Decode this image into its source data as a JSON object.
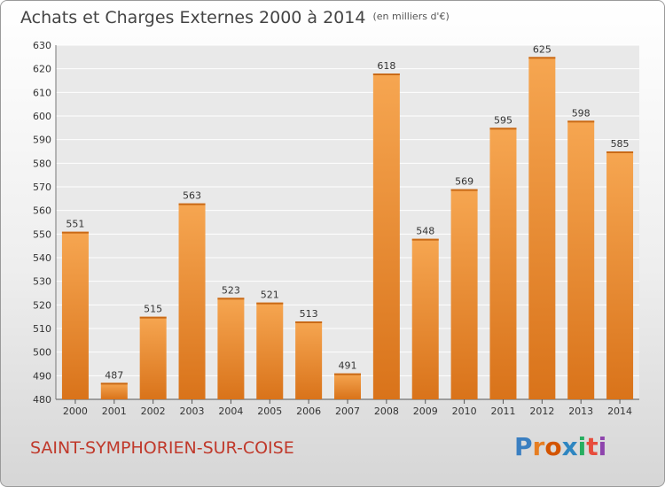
{
  "header": {
    "title": "Achats et Charges Externes 2000 à 2014",
    "unit": "(en milliers d'€)"
  },
  "footer": {
    "commune": "SAINT-SYMPHORIEN-SUR-COISE",
    "logo": "Proxiti",
    "logo_colors": [
      "#3a7fc1",
      "#e67e22",
      "#d35400",
      "#2e86c1",
      "#27ae60",
      "#e74c3c",
      "#8e44ad"
    ]
  },
  "colors": {
    "bar": "#f39c3e",
    "bar_dark": "#d9731a",
    "grid": "#ffffff",
    "commune": "#c0392b"
  },
  "chart_data": {
    "type": "bar",
    "title": "Achats et Charges Externes 2000 à 2014",
    "categories": [
      "2000",
      "2001",
      "2002",
      "2003",
      "2004",
      "2005",
      "2006",
      "2007",
      "2008",
      "2009",
      "2010",
      "2011",
      "2012",
      "2013",
      "2014"
    ],
    "values": [
      551,
      487,
      515,
      563,
      523,
      521,
      513,
      491,
      618,
      548,
      569,
      595,
      625,
      598,
      585
    ],
    "ylim": [
      480,
      630
    ],
    "yticks": [
      480,
      490,
      500,
      510,
      520,
      530,
      540,
      550,
      560,
      570,
      580,
      590,
      600,
      610,
      620,
      630
    ],
    "grid": true,
    "data_labels": true
  }
}
